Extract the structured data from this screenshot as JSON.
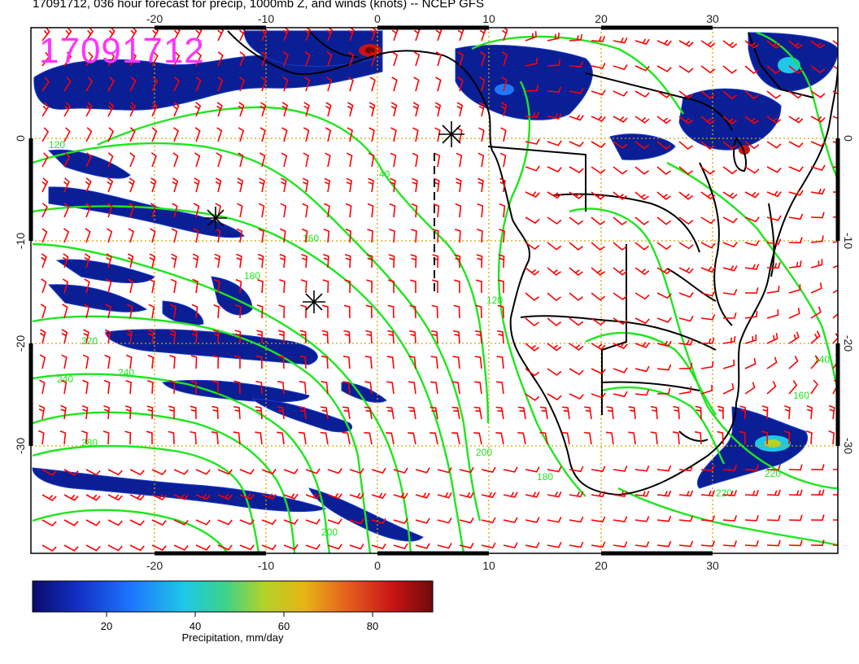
{
  "title": "17091712, 036 hour forecast for precip, 1000mb Z, and winds (knots) -- NCEP GFS",
  "stamp": "17091712",
  "axes": {
    "x_ticks": [
      "-20",
      "-10",
      "0",
      "10",
      "20",
      "30"
    ],
    "y_ticks": [
      "0",
      "-10",
      "-20",
      "-30"
    ]
  },
  "contour_labels": [
    "40",
    "160",
    "180",
    "220",
    "240",
    "240",
    "200",
    "200",
    "180",
    "160",
    "140",
    "220",
    "220",
    "280",
    "120",
    "120"
  ],
  "colorbar": {
    "ticks": [
      "20",
      "40",
      "60",
      "80"
    ],
    "label": "Precipitation, mm/day",
    "colors": [
      "#0a0a6e",
      "#1432c8",
      "#1e78ff",
      "#1ec8e6",
      "#3cd28c",
      "#b4d228",
      "#e6b414",
      "#e6641e",
      "#c81414",
      "#6e0a0a"
    ]
  },
  "colors": {
    "contour": "#1ee61e",
    "wind_barb": "#ff0000",
    "precip": "#0a1e96",
    "grid": "#d9a400",
    "coast": "#000000"
  }
}
